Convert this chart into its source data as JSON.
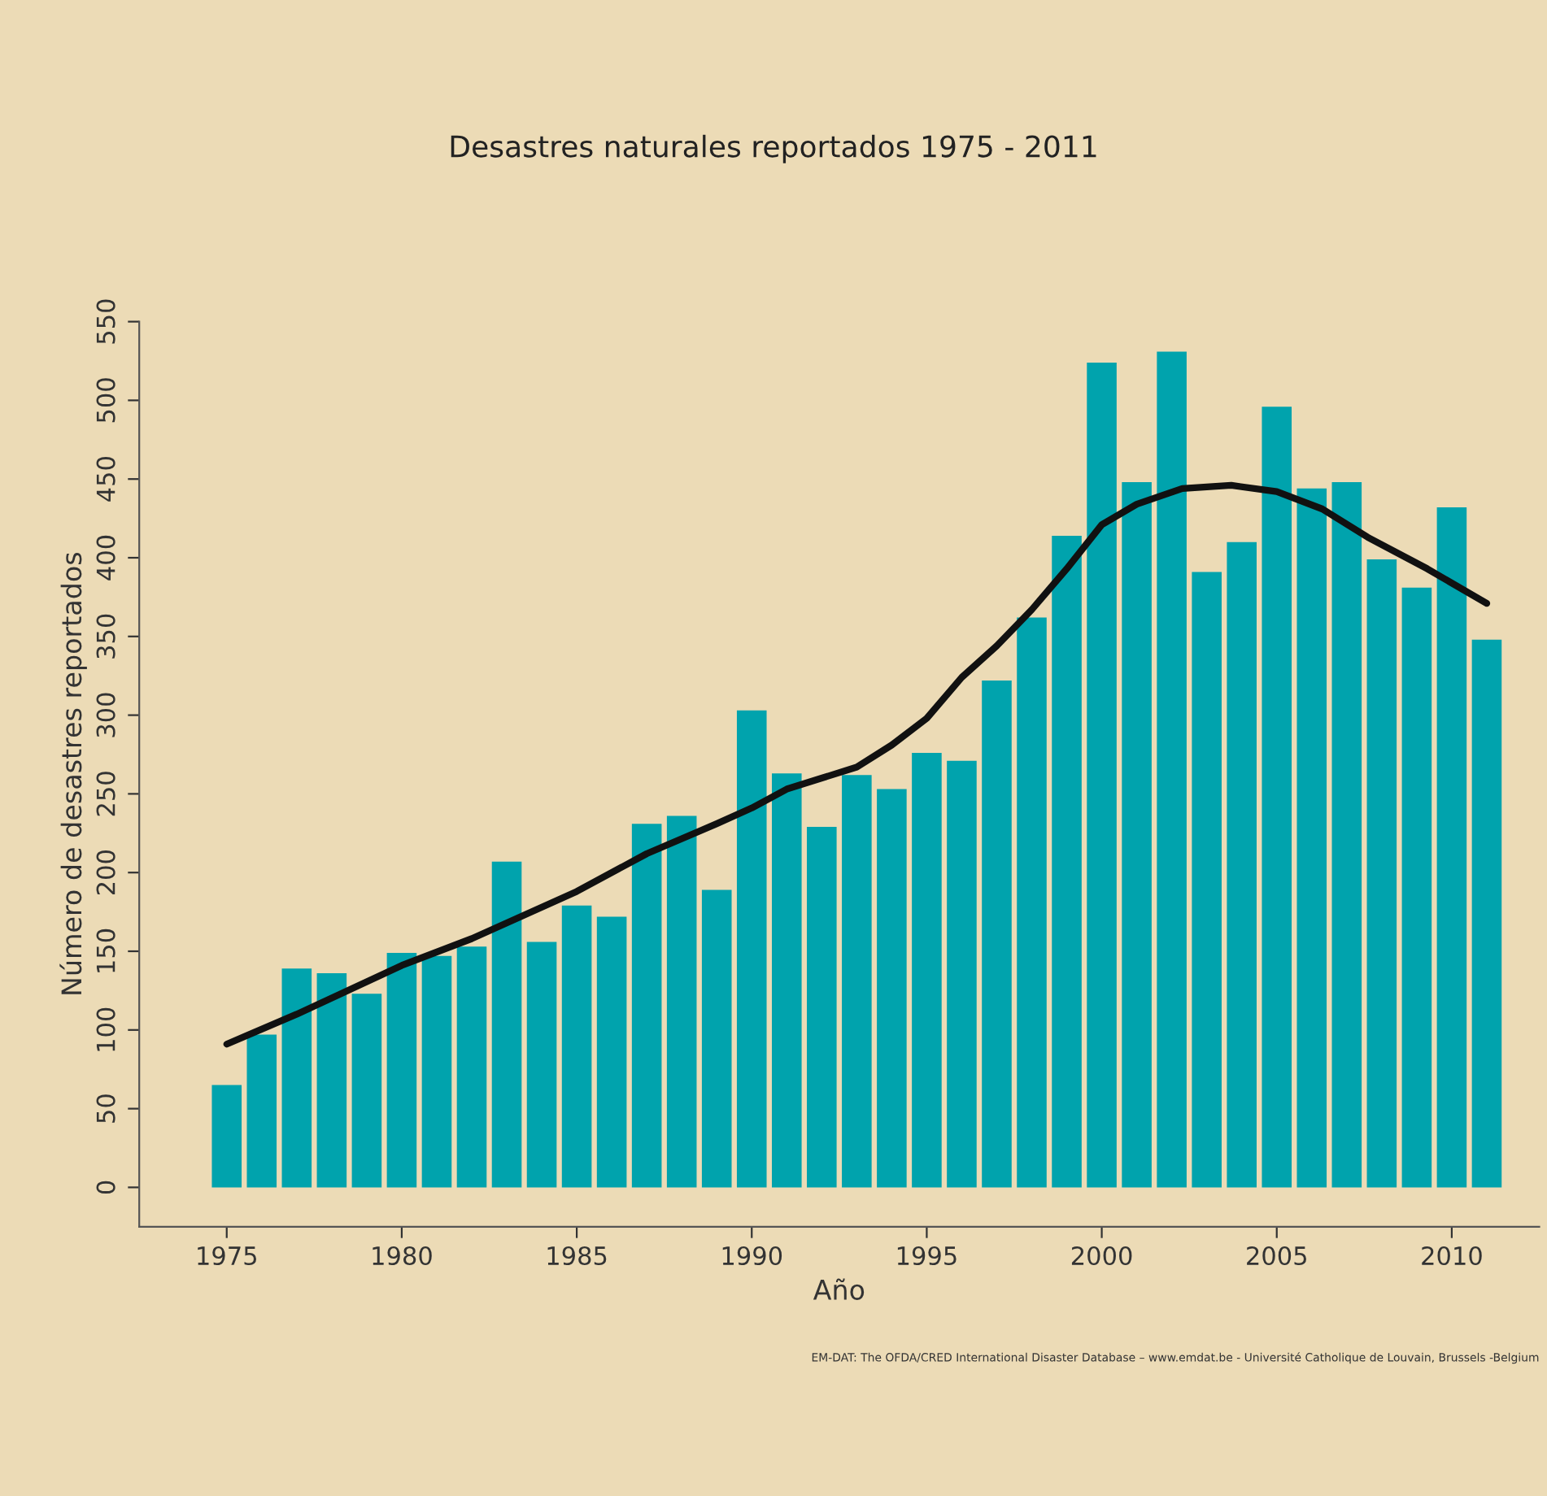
{
  "chart_data": {
    "type": "bar",
    "title": "Desastres naturales reportados 1975 - 2011",
    "xlabel": "Año",
    "ylabel": "Número de desastres reportados",
    "annotations": [
      "EM-DAT: The OFDA/CRED International Disaster Database – www.emdat.be - Université Catholique de Louvain, Brussels -Belgium"
    ],
    "x": [
      1975,
      1976,
      1977,
      1978,
      1979,
      1980,
      1981,
      1982,
      1983,
      1984,
      1985,
      1986,
      1987,
      1988,
      1989,
      1990,
      1991,
      1992,
      1993,
      1994,
      1995,
      1996,
      1997,
      1998,
      1999,
      2000,
      2001,
      2002,
      2003,
      2004,
      2005,
      2006,
      2007,
      2008,
      2009,
      2010,
      2011
    ],
    "series": [
      {
        "color": "#00a3ad",
        "values": [
          65,
          97,
          139,
          136,
          123,
          149,
          147,
          153,
          207,
          156,
          179,
          172,
          231,
          236,
          189,
          303,
          263,
          229,
          262,
          253,
          276,
          271,
          322,
          362,
          414,
          524,
          448,
          531,
          391,
          410,
          496,
          444,
          448,
          399,
          381,
          432,
          348
        ]
      },
      {
        "type": "line",
        "color": "#111111",
        "x": [
          1975,
          1977,
          1980,
          1982,
          1985,
          1987,
          1989,
          1990,
          1991,
          1992,
          1993,
          1994,
          1995,
          1996,
          1997,
          1998,
          1999,
          2000,
          2001,
          2002.3,
          2003.7,
          2005,
          2006.3,
          2007.6,
          2009.3,
          2011
        ],
        "values": [
          91,
          110,
          141,
          158,
          188,
          212,
          231,
          241,
          253,
          260,
          267,
          281,
          298,
          324,
          344,
          367,
          393,
          421,
          434,
          444,
          446,
          442,
          431,
          413,
          393,
          371
        ]
      }
    ],
    "xlim": [
      1972.5,
      2012.5
    ],
    "xticks": [
      1975,
      1980,
      1985,
      1990,
      1995,
      2000,
      2005,
      2010
    ],
    "ylim": [
      -25,
      550
    ],
    "yticks": [
      0,
      50,
      100,
      150,
      200,
      250,
      300,
      350,
      400,
      450,
      500,
      550
    ],
    "grid": false,
    "legend": false
  }
}
